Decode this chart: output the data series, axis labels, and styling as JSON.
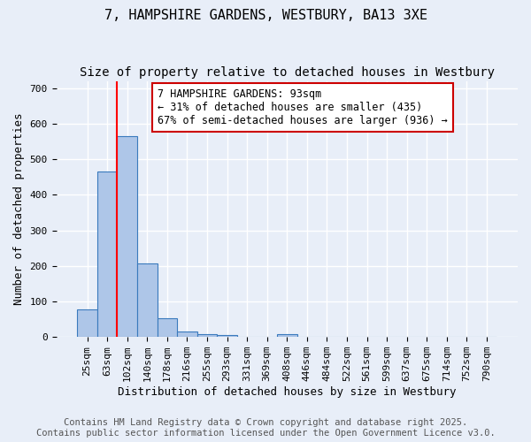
{
  "title": "7, HAMPSHIRE GARDENS, WESTBURY, BA13 3XE",
  "subtitle": "Size of property relative to detached houses in Westbury",
  "xlabel": "Distribution of detached houses by size in Westbury",
  "ylabel": "Number of detached properties",
  "categories": [
    "25sqm",
    "63sqm",
    "102sqm",
    "140sqm",
    "178sqm",
    "216sqm",
    "255sqm",
    "293sqm",
    "331sqm",
    "369sqm",
    "408sqm",
    "446sqm",
    "484sqm",
    "522sqm",
    "561sqm",
    "599sqm",
    "637sqm",
    "675sqm",
    "714sqm",
    "752sqm",
    "790sqm"
  ],
  "bar_values": [
    78,
    465,
    565,
    208,
    52,
    15,
    8,
    6,
    0,
    0,
    8,
    0,
    0,
    0,
    0,
    0,
    0,
    0,
    0,
    0,
    0
  ],
  "bar_color": "#aec6e8",
  "bar_edge_color": "#3a7abd",
  "red_line_x": 1.5,
  "annotation_text": "7 HAMPSHIRE GARDENS: 93sqm\n← 31% of detached houses are smaller (435)\n67% of semi-detached houses are larger (936) →",
  "annotation_box_color": "#ffffff",
  "annotation_edge_color": "#cc0000",
  "ylim": [
    0,
    720
  ],
  "yticks": [
    0,
    100,
    200,
    300,
    400,
    500,
    600,
    700
  ],
  "footnote": "Contains HM Land Registry data © Crown copyright and database right 2025.\nContains public sector information licensed under the Open Government Licence v3.0.",
  "background_color": "#e8eef8",
  "grid_color": "#ffffff",
  "title_fontsize": 11,
  "subtitle_fontsize": 10,
  "axis_label_fontsize": 9,
  "tick_fontsize": 8,
  "annotation_fontsize": 8.5,
  "footnote_fontsize": 7.5
}
